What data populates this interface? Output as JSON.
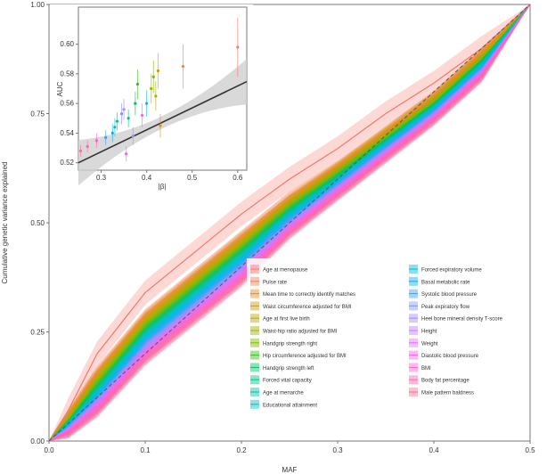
{
  "chart_data": [
    {
      "type": "line",
      "xlabel": "MAF",
      "ylabel": "Cumulative genetic variance explained",
      "xlim": [
        0,
        0.5
      ],
      "ylim": [
        0,
        1
      ],
      "x_ticks": [
        "0.0",
        "0.1",
        "0.2",
        "0.3",
        "0.4",
        "0.5"
      ],
      "y_ticks": [
        "0.00",
        "0.25",
        "0.50",
        "0.75",
        "1.00"
      ],
      "reference_line": {
        "style": "dashed",
        "from": [
          0,
          0
        ],
        "to": [
          0.5,
          1
        ]
      },
      "x": [
        0,
        0.02,
        0.05,
        0.1,
        0.15,
        0.2,
        0.25,
        0.3,
        0.35,
        0.4,
        0.45,
        0.5
      ],
      "series": [
        {
          "name": "Age at menopause",
          "color": "#f8766d",
          "values": [
            0,
            0.07,
            0.2,
            0.34,
            0.43,
            0.52,
            0.6,
            0.67,
            0.75,
            0.82,
            0.9,
            1.0
          ]
        },
        {
          "name": "Pulse rate",
          "color": "#f0814b",
          "values": [
            0,
            0.06,
            0.16,
            0.29,
            0.38,
            0.47,
            0.56,
            0.63,
            0.71,
            0.79,
            0.89,
            1.0
          ]
        },
        {
          "name": "Mean time to correctly identify matches",
          "color": "#e48c1c",
          "values": [
            0,
            0.058,
            0.155,
            0.285,
            0.375,
            0.465,
            0.553,
            0.628,
            0.708,
            0.787,
            0.887,
            1.0
          ]
        },
        {
          "name": "Waist circumference adjusted for BMI",
          "color": "#d19b00",
          "values": [
            0,
            0.056,
            0.15,
            0.28,
            0.37,
            0.46,
            0.55,
            0.625,
            0.705,
            0.785,
            0.885,
            1.0
          ]
        },
        {
          "name": "Age at first live birth",
          "color": "#bba600",
          "values": [
            0,
            0.054,
            0.145,
            0.275,
            0.365,
            0.455,
            0.546,
            0.622,
            0.702,
            0.782,
            0.882,
            1.0
          ]
        },
        {
          "name": "Waist-hip ratio adjusted for BMI",
          "color": "#9fb000",
          "values": [
            0,
            0.052,
            0.14,
            0.27,
            0.36,
            0.45,
            0.542,
            0.618,
            0.699,
            0.779,
            0.879,
            1.0
          ]
        },
        {
          "name": "Handgrip strength right",
          "color": "#7cb900",
          "values": [
            0,
            0.05,
            0.135,
            0.265,
            0.355,
            0.445,
            0.538,
            0.615,
            0.696,
            0.777,
            0.877,
            1.0
          ]
        },
        {
          "name": "Hip circumference adjusted for BMI",
          "color": "#39be1d",
          "values": [
            0,
            0.048,
            0.13,
            0.26,
            0.35,
            0.44,
            0.534,
            0.612,
            0.693,
            0.774,
            0.874,
            1.0
          ]
        },
        {
          "name": "Handgrip strength left",
          "color": "#00c15a",
          "values": [
            0,
            0.046,
            0.125,
            0.255,
            0.345,
            0.435,
            0.53,
            0.608,
            0.69,
            0.772,
            0.872,
            1.0
          ]
        },
        {
          "name": "Forced vital capacity",
          "color": "#00c385",
          "values": [
            0,
            0.044,
            0.12,
            0.25,
            0.34,
            0.43,
            0.526,
            0.605,
            0.687,
            0.769,
            0.869,
            1.0
          ]
        },
        {
          "name": "Age at menarche",
          "color": "#00c2a8",
          "values": [
            0,
            0.042,
            0.115,
            0.245,
            0.335,
            0.425,
            0.522,
            0.602,
            0.684,
            0.766,
            0.866,
            1.0
          ]
        },
        {
          "name": "Educational attainment",
          "color": "#00bfc8",
          "values": [
            0,
            0.04,
            0.11,
            0.24,
            0.33,
            0.42,
            0.518,
            0.598,
            0.681,
            0.763,
            0.863,
            1.0
          ]
        },
        {
          "name": "Forced expiratory volume",
          "color": "#00b9e3",
          "values": [
            0,
            0.038,
            0.106,
            0.235,
            0.325,
            0.415,
            0.514,
            0.595,
            0.678,
            0.761,
            0.861,
            1.0
          ]
        },
        {
          "name": "Basal metabolic rate",
          "color": "#00b0f6",
          "values": [
            0,
            0.036,
            0.102,
            0.23,
            0.32,
            0.41,
            0.51,
            0.592,
            0.675,
            0.758,
            0.858,
            1.0
          ]
        },
        {
          "name": "Systolic blood pressure",
          "color": "#35a2ff",
          "values": [
            0,
            0.034,
            0.098,
            0.225,
            0.315,
            0.405,
            0.506,
            0.588,
            0.672,
            0.755,
            0.855,
            1.0
          ]
        },
        {
          "name": "Peak expiratory flow",
          "color": "#7c96ff",
          "values": [
            0,
            0.032,
            0.094,
            0.22,
            0.31,
            0.4,
            0.502,
            0.585,
            0.669,
            0.753,
            0.853,
            1.0
          ]
        },
        {
          "name": "Heel bone mineral density T-score",
          "color": "#a58aff",
          "values": [
            0,
            0.03,
            0.09,
            0.215,
            0.305,
            0.395,
            0.498,
            0.582,
            0.666,
            0.75,
            0.85,
            1.0
          ]
        },
        {
          "name": "Height",
          "color": "#c77cff",
          "values": [
            0,
            0.028,
            0.086,
            0.21,
            0.3,
            0.39,
            0.494,
            0.578,
            0.663,
            0.747,
            0.847,
            1.0
          ]
        },
        {
          "name": "Weight",
          "color": "#e26ef7",
          "values": [
            0,
            0.026,
            0.082,
            0.205,
            0.295,
            0.385,
            0.49,
            0.575,
            0.66,
            0.745,
            0.845,
            1.0
          ]
        },
        {
          "name": "Diastolic blood pressure",
          "color": "#f564e3",
          "values": [
            0,
            0.024,
            0.078,
            0.2,
            0.29,
            0.38,
            0.486,
            0.572,
            0.657,
            0.742,
            0.842,
            1.0
          ]
        },
        {
          "name": "BMI",
          "color": "#fe61cf",
          "values": [
            0,
            0.022,
            0.074,
            0.195,
            0.285,
            0.375,
            0.482,
            0.568,
            0.654,
            0.739,
            0.839,
            1.0
          ]
        },
        {
          "name": "Body fat percentage",
          "color": "#ff64b0",
          "values": [
            0,
            0.02,
            0.07,
            0.19,
            0.28,
            0.37,
            0.478,
            0.565,
            0.651,
            0.737,
            0.837,
            1.0
          ]
        },
        {
          "name": "Male pattern baldness",
          "color": "#ff6c91",
          "values": [
            0,
            0.018,
            0.066,
            0.185,
            0.275,
            0.365,
            0.474,
            0.562,
            0.648,
            0.734,
            0.834,
            1.0
          ]
        }
      ]
    },
    {
      "type": "scatter",
      "xlabel": "|β|",
      "ylabel": "AUC",
      "xlim": [
        0.25,
        0.62
      ],
      "ylim": [
        0.515,
        0.625
      ],
      "x_ticks": [
        "0.3",
        "0.4",
        "0.5",
        "0.6"
      ],
      "y_ticks": [
        "0.52",
        "0.54",
        "0.56",
        "0.58",
        "0.60"
      ],
      "fit": {
        "intercept": 0.483,
        "slope": 0.148,
        "ci_halfwidth": 0.007
      },
      "points": [
        {
          "x": 0.255,
          "y": 0.528,
          "err": 0.004,
          "color": "#ff6c91"
        },
        {
          "x": 0.27,
          "y": 0.531,
          "err": 0.004,
          "color": "#ff64b0"
        },
        {
          "x": 0.29,
          "y": 0.535,
          "err": 0.005,
          "color": "#fe61cf"
        },
        {
          "x": 0.31,
          "y": 0.537,
          "err": 0.005,
          "color": "#35a2ff"
        },
        {
          "x": 0.325,
          "y": 0.54,
          "err": 0.006,
          "color": "#00b0f6"
        },
        {
          "x": 0.33,
          "y": 0.544,
          "err": 0.006,
          "color": "#00bfc8"
        },
        {
          "x": 0.335,
          "y": 0.548,
          "err": 0.006,
          "color": "#00c2a8"
        },
        {
          "x": 0.345,
          "y": 0.553,
          "err": 0.007,
          "color": "#7c96ff"
        },
        {
          "x": 0.35,
          "y": 0.556,
          "err": 0.007,
          "color": "#c77cff"
        },
        {
          "x": 0.355,
          "y": 0.526,
          "err": 0.005,
          "color": "#f564e3"
        },
        {
          "x": 0.36,
          "y": 0.55,
          "err": 0.006,
          "color": "#00c385"
        },
        {
          "x": 0.37,
          "y": 0.538,
          "err": 0.006,
          "color": "#a58aff"
        },
        {
          "x": 0.375,
          "y": 0.56,
          "err": 0.008,
          "color": "#00c15a"
        },
        {
          "x": 0.38,
          "y": 0.573,
          "err": 0.01,
          "color": "#39be1d"
        },
        {
          "x": 0.39,
          "y": 0.552,
          "err": 0.008,
          "color": "#e26ef7"
        },
        {
          "x": 0.4,
          "y": 0.56,
          "err": 0.009,
          "color": "#00b9e3"
        },
        {
          "x": 0.41,
          "y": 0.57,
          "err": 0.01,
          "color": "#9fb000"
        },
        {
          "x": 0.415,
          "y": 0.578,
          "err": 0.011,
          "color": "#7cb900"
        },
        {
          "x": 0.42,
          "y": 0.565,
          "err": 0.01,
          "color": "#bba600"
        },
        {
          "x": 0.425,
          "y": 0.582,
          "err": 0.012,
          "color": "#d19b00"
        },
        {
          "x": 0.43,
          "y": 0.545,
          "err": 0.008,
          "color": "#e48c1c"
        },
        {
          "x": 0.48,
          "y": 0.585,
          "err": 0.015,
          "color": "#f0814b"
        },
        {
          "x": 0.6,
          "y": 0.598,
          "err": 0.02,
          "color": "#f8766d"
        }
      ]
    }
  ]
}
